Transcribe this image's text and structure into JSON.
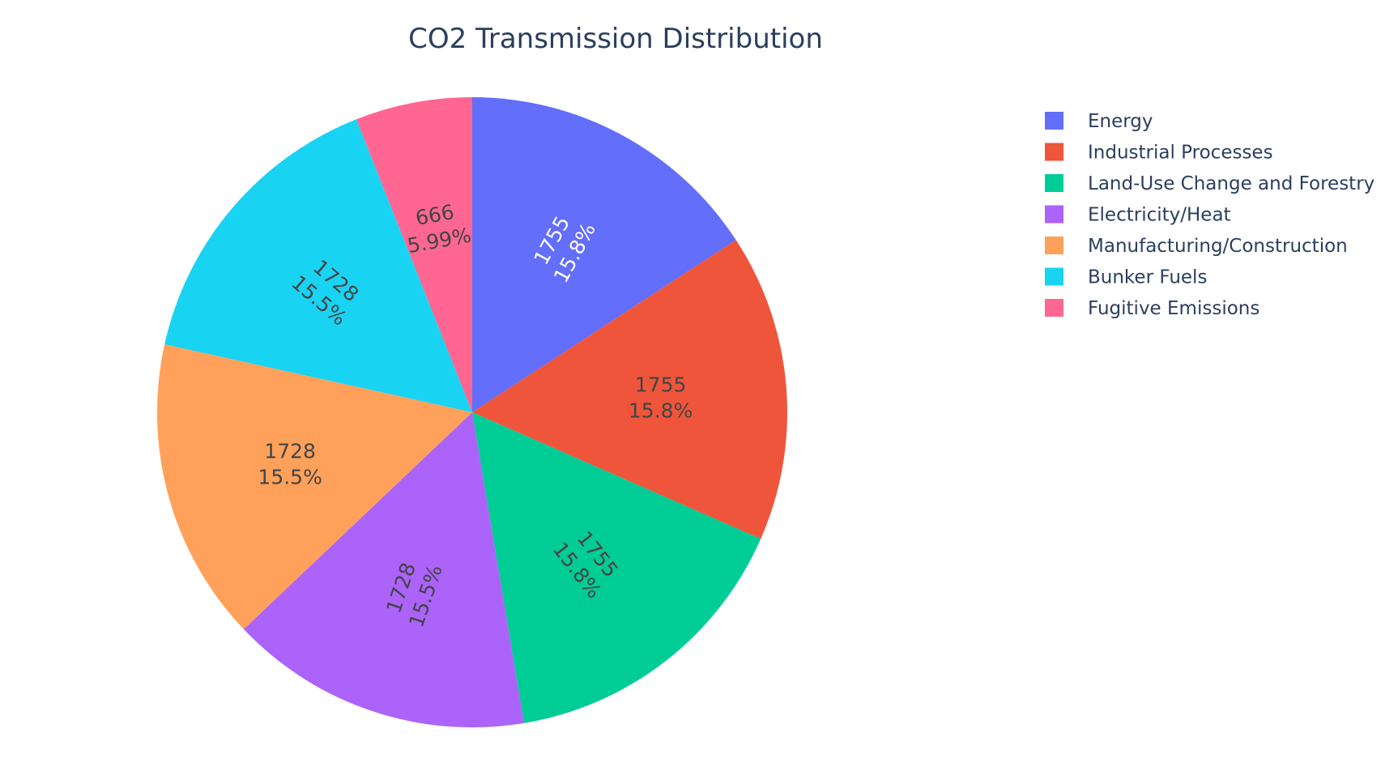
{
  "chart_data": {
    "type": "pie",
    "title": "CO2 Transmission Distribution",
    "legend_position": "top-right",
    "sort": "descending",
    "direction": "clockwise",
    "slices": [
      {
        "label": "Energy",
        "value": 1755,
        "percent_text": "15.8%",
        "color": "#636efa",
        "text_color": "#ffffff"
      },
      {
        "label": "Industrial Processes",
        "value": 1755,
        "percent_text": "15.8%",
        "color": "#EF553B",
        "text_color": "#444444"
      },
      {
        "label": "Land-Use Change and Forestry",
        "value": 1755,
        "percent_text": "15.8%",
        "color": "#00cc96",
        "text_color": "#444444"
      },
      {
        "label": "Electricity/Heat",
        "value": 1728,
        "percent_text": "15.5%",
        "color": "#ab63fa",
        "text_color": "#444444"
      },
      {
        "label": "Manufacturing/Construction",
        "value": 1728,
        "percent_text": "15.5%",
        "color": "#FFA15A",
        "text_color": "#444444"
      },
      {
        "label": "Bunker Fuels",
        "value": 1728,
        "percent_text": "15.5%",
        "color": "#19d3f3",
        "text_color": "#444444"
      },
      {
        "label": "Fugitive Emissions",
        "value": 666,
        "percent_text": "5.99%",
        "color": "#FF6692",
        "text_color": "#444444"
      }
    ]
  }
}
